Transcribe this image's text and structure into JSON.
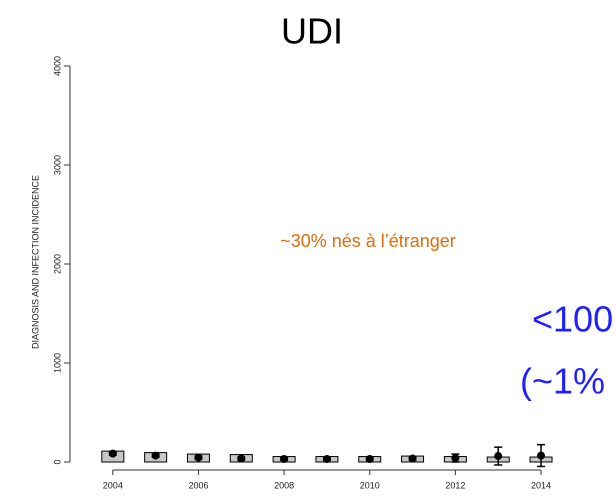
{
  "chart_data": {
    "type": "bar-point",
    "title": "UDI",
    "y_label": "DIAGNOSIS AND INFECTION INCIDENCE",
    "annotations": [
      "~30% nés à l’étranger",
      "<100",
      "(~1%"
    ],
    "x": [
      2004,
      2005,
      2006,
      2007,
      2008,
      2009,
      2010,
      2011,
      2012,
      2013,
      2014
    ],
    "series": [
      {
        "type": "bar",
        "color": "#c8c8c8",
        "values": [
          110,
          95,
          80,
          75,
          55,
          55,
          55,
          60,
          55,
          50,
          50
        ]
      },
      {
        "type": "point",
        "color": "#000000",
        "values": [
          85,
          65,
          45,
          35,
          30,
          30,
          30,
          35,
          40,
          60,
          65
        ],
        "errors": [
          15,
          15,
          15,
          15,
          10,
          10,
          10,
          15,
          40,
          90,
          110
        ]
      }
    ],
    "xlim": [
      2003,
      2014.7
    ],
    "xticks": [
      2004,
      2006,
      2008,
      2010,
      2012,
      2014
    ],
    "ylim": [
      0,
      4000
    ],
    "yticks": [
      0,
      1000,
      2000,
      3000,
      4000
    ]
  }
}
